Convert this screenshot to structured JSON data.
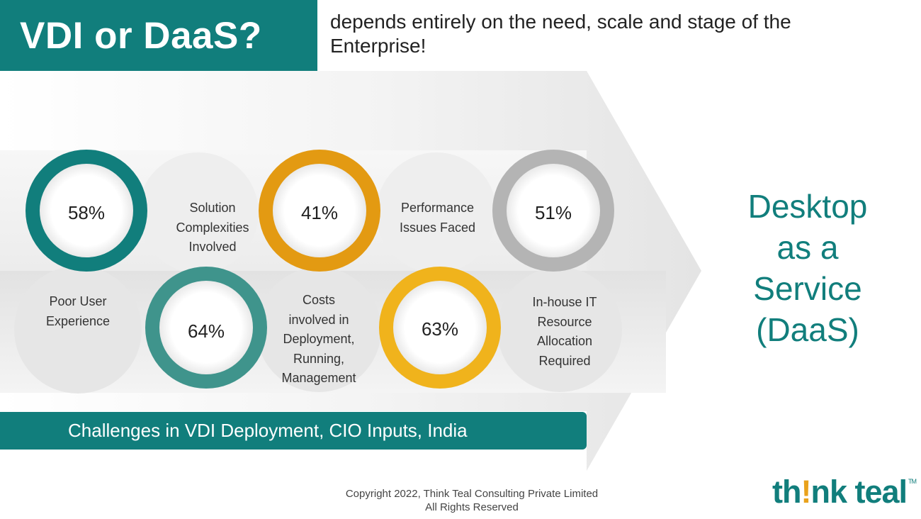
{
  "header": {
    "title": "VDI or DaaS?",
    "subtitle": "depends entirely on the need, scale and stage of the Enterprise!"
  },
  "challenges": [
    {
      "value": "58%",
      "color": "#117e7c",
      "row": "top"
    },
    {
      "value": "41%",
      "color": "#e39a12",
      "row": "top"
    },
    {
      "value": "51%",
      "color": "#b4b4b4",
      "row": "top"
    },
    {
      "value": "64%",
      "color": "#3f948c",
      "row": "bottom"
    },
    {
      "value": "63%",
      "color": "#f0b31c",
      "row": "bottom"
    }
  ],
  "labels": {
    "solution_complexities": [
      "Solution",
      "Complexities",
      "Involved"
    ],
    "performance_issues": [
      "Performance",
      "Issues Faced"
    ],
    "poor_user_experience": [
      "Poor User",
      "Experience"
    ],
    "costs_involved": [
      "Costs",
      "involved in",
      "Deployment,",
      "Running,",
      "Management"
    ],
    "inhouse_it": [
      "In-house IT",
      "Resource",
      "Allocation",
      "Required"
    ]
  },
  "daas": [
    "Desktop",
    "as a",
    "Service",
    "(DaaS)"
  ],
  "banner": "Challenges in VDI Deployment, CIO Inputs, India",
  "footer": {
    "copyright_line1": "Copyright 2022, Think Teal Consulting Private Limited",
    "copyright_line2": "All Rights Reserved"
  },
  "logo": {
    "part1": "th",
    "accent": "!",
    "part2": "nk teal",
    "trademark": "TM"
  }
}
